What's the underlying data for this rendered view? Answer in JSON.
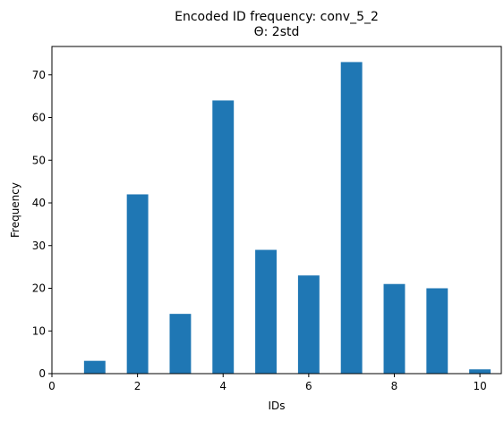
{
  "chart_data": {
    "type": "bar",
    "title": "Encoded ID frequency: conv_5_2",
    "subtitle": "Θ: 2std",
    "xlabel": "IDs",
    "ylabel": "Frequency",
    "x": [
      1,
      2,
      3,
      4,
      5,
      6,
      7,
      8,
      9,
      10
    ],
    "values": [
      3,
      42,
      14,
      64,
      29,
      23,
      73,
      21,
      20,
      1
    ],
    "bar_width": 0.5,
    "xlim": [
      0,
      10.5
    ],
    "ylim": [
      0,
      76.65
    ],
    "xticks": [
      0,
      2,
      4,
      6,
      8,
      10
    ],
    "yticks": [
      0,
      10,
      20,
      30,
      40,
      50,
      60,
      70
    ],
    "grid": false,
    "color": "#1f77b4"
  }
}
